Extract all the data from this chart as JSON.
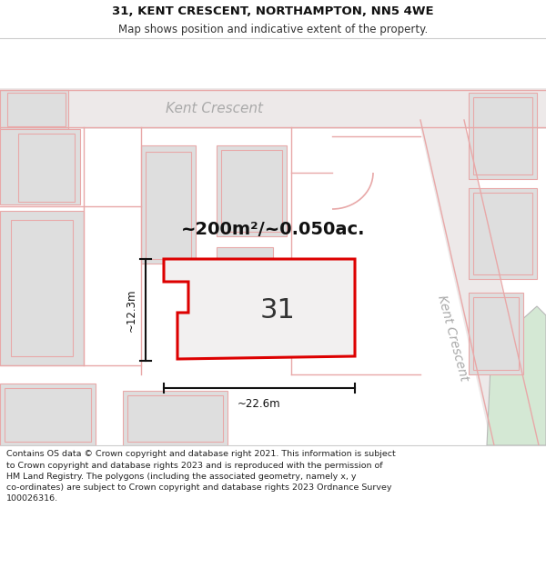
{
  "title_line1": "31, KENT CRESCENT, NORTHAMPTON, NN5 4WE",
  "title_line2": "Map shows position and indicative extent of the property.",
  "footer_text": "Contains OS data © Crown copyright and database right 2021. This information is subject\nto Crown copyright and database rights 2023 and is reproduced with the permission of\nHM Land Registry. The polygons (including the associated geometry, namely x, y\nco-ordinates) are subject to Crown copyright and database rights 2023 Ordnance Survey\n100026316.",
  "bg_color": "#f5f3f2",
  "road_fill": "#ede9e9",
  "plot_outline_color": "#dd0000",
  "plot_fill": "#f2f0f0",
  "building_fill": "#dedede",
  "building_edge_pink": "#e8a8a8",
  "road_line_color": "#e8a8a8",
  "dim_color": "#111111",
  "street_label_color": "#aaaaaa",
  "area_label": "~200m²/~0.050ac.",
  "number_label": "31",
  "dim_width": "~22.6m",
  "dim_height": "~12.3m",
  "header_bg": "#ffffff",
  "footer_bg": "#ffffff",
  "title1_fontsize": 9.5,
  "title2_fontsize": 8.5,
  "footer_fontsize": 6.8
}
